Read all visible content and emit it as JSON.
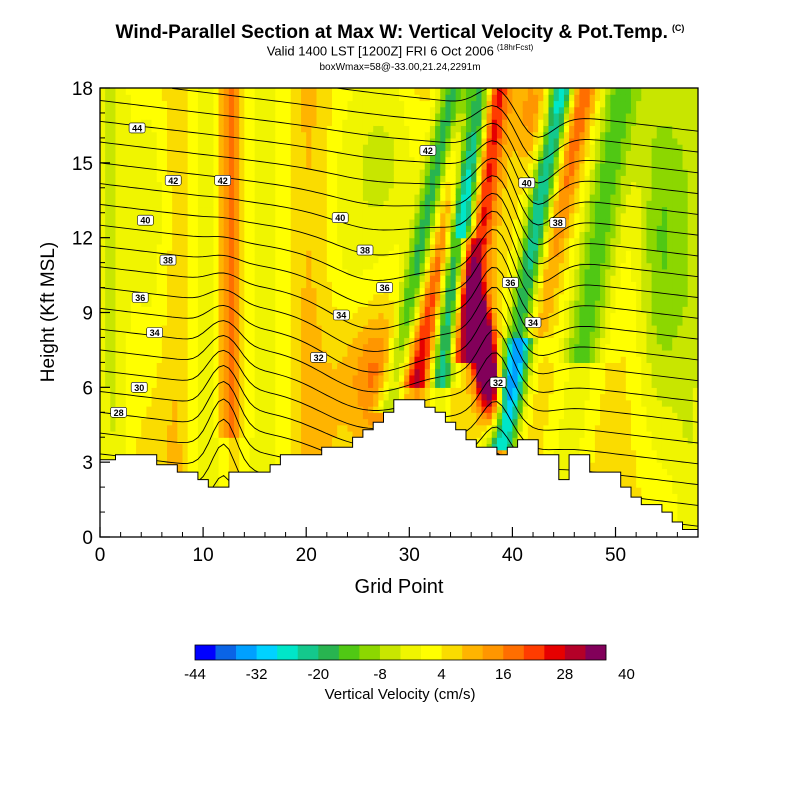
{
  "header": {
    "title": "Wind-Parallel Section at Max W: Vertical Velocity & Pot.Temp.",
    "copyright": "(C)",
    "subtitle": "Valid 1400 LST [1200Z] FRI 6 Oct 2006",
    "forecast_tag": "(18hrFcst)",
    "subtitle2": "boxWmax=58@-33.00,21.24,2291m"
  },
  "chart_data": {
    "type": "heatmap",
    "title": "Wind-Parallel Section at Max W: Vertical Velocity & Pot.Temp.",
    "xlabel": "Grid Point",
    "ylabel": "Height (Kft MSL)",
    "xlim": [
      0,
      58
    ],
    "ylim": [
      0,
      18
    ],
    "xticks": [
      "0",
      "10",
      "20",
      "30",
      "40",
      "50"
    ],
    "yticks": [
      "0",
      "3",
      "6",
      "9",
      "12",
      "15",
      "18"
    ],
    "colorbar": {
      "label": "Vertical Velocity (cm/s)",
      "tick_labels": [
        "-44",
        "-32",
        "-20",
        "-8",
        "4",
        "16",
        "28",
        "40"
      ],
      "colors": [
        "#0000ff",
        "#0a64e6",
        "#00a0ff",
        "#00d2ff",
        "#00e6c8",
        "#14c88c",
        "#28b450",
        "#50c814",
        "#8cd700",
        "#c8e600",
        "#f0f500",
        "#ffff00",
        "#fadc00",
        "#ffb400",
        "#ff9600",
        "#ff6e00",
        "#ff3c00",
        "#e60000",
        "#b40028",
        "#82005a"
      ]
    },
    "terrain_kft": [
      3.1,
      3.1,
      3.3,
      3.3,
      3.3,
      3.3,
      2.9,
      2.9,
      2.6,
      2.6,
      2.3,
      2.0,
      2.0,
      2.6,
      2.6,
      2.6,
      2.6,
      2.9,
      3.3,
      3.3,
      3.3,
      3.3,
      3.6,
      3.6,
      3.6,
      4.0,
      4.3,
      4.6,
      5.0,
      5.5,
      5.5,
      5.5,
      5.2,
      5.0,
      4.6,
      4.3,
      3.9,
      3.6,
      3.6,
      3.3,
      3.6,
      3.9,
      3.9,
      3.3,
      3.3,
      2.3,
      3.3,
      3.3,
      2.6,
      2.6,
      2.6,
      2.0,
      1.6,
      1.3,
      1.3,
      1.0,
      0.6,
      0.3,
      0.3
    ],
    "isentrope_labels": [
      {
        "text": "44",
        "x": 3.6,
        "y": 16.4
      },
      {
        "text": "42",
        "x": 7.1,
        "y": 14.3
      },
      {
        "text": "40",
        "x": 4.4,
        "y": 12.7
      },
      {
        "text": "38",
        "x": 6.6,
        "y": 11.1
      },
      {
        "text": "36",
        "x": 3.9,
        "y": 9.6
      },
      {
        "text": "34",
        "x": 5.3,
        "y": 8.2
      },
      {
        "text": "32",
        "x": 21.2,
        "y": 7.2
      },
      {
        "text": "30",
        "x": 3.8,
        "y": 6.0
      },
      {
        "text": "28",
        "x": 1.8,
        "y": 5.0
      },
      {
        "text": "42",
        "x": 11.9,
        "y": 14.3
      },
      {
        "text": "40",
        "x": 23.3,
        "y": 12.8
      },
      {
        "text": "38",
        "x": 25.7,
        "y": 11.5
      },
      {
        "text": "36",
        "x": 27.6,
        "y": 10.0
      },
      {
        "text": "34",
        "x": 23.4,
        "y": 8.9
      },
      {
        "text": "42",
        "x": 31.8,
        "y": 15.5
      },
      {
        "text": "40",
        "x": 41.4,
        "y": 14.2
      },
      {
        "text": "38",
        "x": 44.4,
        "y": 12.6
      },
      {
        "text": "36",
        "x": 39.8,
        "y": 10.2
      },
      {
        "text": "34",
        "x": 42.0,
        "y": 8.6
      },
      {
        "text": "32",
        "x": 38.6,
        "y": 6.2
      }
    ]
  }
}
